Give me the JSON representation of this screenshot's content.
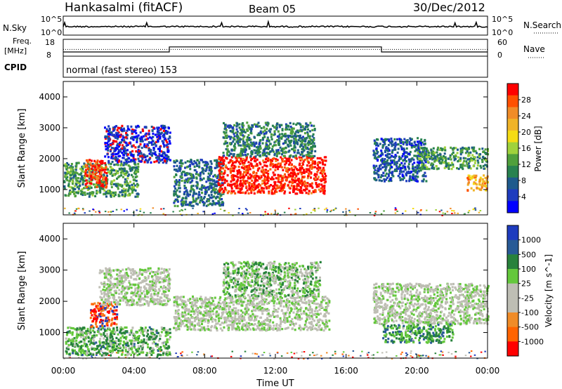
{
  "header": {
    "station": "Hankasalmi (fitACF)",
    "beam": "Beam 05",
    "date": "30/Dec/2012"
  },
  "status_panels": {
    "nsky_label": "N.Sky",
    "nsearch_label": "N.Search",
    "nsky_ticks": [
      "10^5",
      "10^0"
    ],
    "nsearch_ticks": [
      "10^5",
      "10^0"
    ],
    "freq_label_1": "Freq.",
    "freq_label_2": "[MHz]",
    "freq_ticks": [
      "18",
      "8"
    ],
    "nave_label": "Nave",
    "nave_ticks": [
      "60",
      "0"
    ],
    "cpid_label": "CPID",
    "cpid_value": "normal (fast stereo) 153",
    "nsky_level": 0.45,
    "freq_mhz": 12,
    "nave_step": [
      {
        "start_h": 0,
        "end_h": 6,
        "level": 0.25
      },
      {
        "start_h": 6,
        "end_h": 18,
        "level": 0.55
      },
      {
        "start_h": 18,
        "end_h": 24,
        "level": 0.25
      }
    ]
  },
  "chart_data": [
    {
      "type": "heatmap",
      "name": "Power",
      "ylabel": "Slant Range [km]",
      "xlabel": "Time UT",
      "ylim": [
        180,
        4500
      ],
      "xlim": [
        0,
        24
      ],
      "y_ticks": [
        "4000",
        "3000",
        "2000",
        "1000"
      ],
      "colorbar_label": "Power [dB]",
      "colorbar_ticks": [
        "28",
        "24",
        "20",
        "16",
        "12",
        "8",
        "4"
      ],
      "colorbar_colors": [
        "#ff0000",
        "#ff5000",
        "#f08c28",
        "#f0b428",
        "#f5dc14",
        "#a0d23c",
        "#50a03c",
        "#288250",
        "#1e5a8c",
        "#1e3cbe",
        "#0000ff"
      ],
      "regions": [
        {
          "t0": 0.0,
          "t1": 4.2,
          "r0": 800,
          "r1": 1900,
          "val": 0.35
        },
        {
          "t0": 1.2,
          "t1": 2.4,
          "r0": 1100,
          "r1": 2000,
          "val": 0.9
        },
        {
          "t0": 2.3,
          "t1": 6.0,
          "r0": 1900,
          "r1": 3100,
          "val": 0.1
        },
        {
          "t0": 6.2,
          "t1": 9.0,
          "r0": 500,
          "r1": 2000,
          "val": 0.25
        },
        {
          "t0": 8.7,
          "t1": 14.8,
          "r0": 900,
          "r1": 2100,
          "val": 0.95
        },
        {
          "t0": 9.0,
          "t1": 14.2,
          "r0": 2100,
          "r1": 3200,
          "val": 0.3
        },
        {
          "t0": 17.5,
          "t1": 20.5,
          "r0": 1300,
          "r1": 2700,
          "val": 0.2
        },
        {
          "t0": 20.0,
          "t1": 24.0,
          "r0": 1700,
          "r1": 2400,
          "val": 0.35
        },
        {
          "t0": 22.8,
          "t1": 24.0,
          "r0": 1000,
          "r1": 1500,
          "val": 0.7
        }
      ]
    },
    {
      "type": "heatmap",
      "name": "Velocity",
      "ylabel": "Slant Range [km]",
      "xlabel": "Time UT",
      "ylim": [
        180,
        4500
      ],
      "xlim": [
        0,
        24
      ],
      "y_ticks": [
        "4000",
        "3000",
        "2000",
        "1000"
      ],
      "x_ticks": [
        "00:00",
        "04:00",
        "08:00",
        "12:00",
        "16:00",
        "20:00",
        "00:00"
      ],
      "colorbar_label": "Velocity [m s^-1]",
      "colorbar_ticks": [
        "1000",
        "500",
        "100",
        "25",
        "-25",
        "-100",
        "-500",
        "-1000"
      ],
      "colorbar_colors": [
        "#1e3cbe",
        "#285a96",
        "#28823c",
        "#64c83c",
        "#bebeb4",
        "#bebeb4",
        "#f08c28",
        "#ff6400",
        "#ff0000"
      ],
      "regions": [
        {
          "t0": 0.0,
          "t1": 6.0,
          "r0": 300,
          "r1": 1200,
          "val": 0.65
        },
        {
          "t0": 1.5,
          "t1": 3.0,
          "r0": 1200,
          "r1": 2000,
          "val": 0.1
        },
        {
          "t0": 2.0,
          "t1": 6.0,
          "r0": 1900,
          "r1": 3100,
          "val": 0.5
        },
        {
          "t0": 6.2,
          "t1": 15.0,
          "r0": 1100,
          "r1": 2200,
          "val": 0.5
        },
        {
          "t0": 9.0,
          "t1": 14.5,
          "r0": 2200,
          "r1": 3300,
          "val": 0.6
        },
        {
          "t0": 17.5,
          "t1": 24.0,
          "r0": 1300,
          "r1": 2600,
          "val": 0.5
        },
        {
          "t0": 18.0,
          "t1": 22.0,
          "r0": 700,
          "r1": 1300,
          "val": 0.7
        }
      ]
    }
  ]
}
